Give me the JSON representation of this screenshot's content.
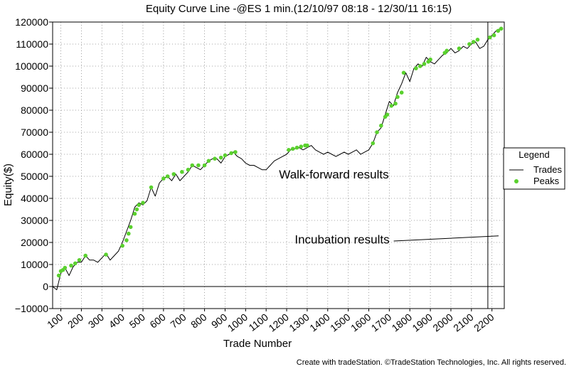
{
  "chart_data": {
    "type": "line",
    "title": "Equity Curve Line -@ES 1 min.(12/10/97 08:18 - 12/30/11 16:15)",
    "xlabel": "Trade Number",
    "ylabel": "Equity($)",
    "xlim": [
      60,
      2260
    ],
    "ylim": [
      -10000,
      120000
    ],
    "x_ticks": [
      100,
      200,
      300,
      400,
      500,
      600,
      700,
      800,
      900,
      1000,
      1100,
      1200,
      1300,
      1400,
      1500,
      1600,
      1700,
      1800,
      1900,
      2000,
      2100,
      2200
    ],
    "y_ticks": [
      -10000,
      0,
      10000,
      20000,
      30000,
      40000,
      50000,
      60000,
      70000,
      80000,
      90000,
      100000,
      110000,
      120000
    ],
    "y_tick_labels": [
      "−10000",
      "0",
      "10000",
      "20000",
      "30000",
      "40000",
      "50000",
      "60000",
      "70000",
      "80000",
      "90000",
      "100000",
      "110000",
      "120000"
    ],
    "grid": true,
    "legend": {
      "title": "Legend",
      "position": "right",
      "entries": [
        {
          "label": "Trades",
          "color": "#000000",
          "marker": "line"
        },
        {
          "label": "Peaks",
          "color": "#5ad12e",
          "marker": "dot"
        }
      ]
    },
    "series": [
      {
        "name": "Trades",
        "color": "#000000",
        "x": [
          60,
          80,
          100,
          120,
          140,
          160,
          180,
          200,
          220,
          240,
          260,
          280,
          300,
          320,
          340,
          360,
          380,
          400,
          420,
          440,
          460,
          480,
          500,
          520,
          540,
          560,
          580,
          600,
          620,
          640,
          660,
          680,
          700,
          720,
          740,
          760,
          780,
          800,
          820,
          840,
          860,
          880,
          900,
          920,
          940,
          960,
          980,
          1000,
          1020,
          1040,
          1060,
          1080,
          1100,
          1120,
          1140,
          1160,
          1180,
          1200,
          1220,
          1240,
          1260,
          1280,
          1300,
          1320,
          1340,
          1360,
          1380,
          1400,
          1420,
          1440,
          1460,
          1480,
          1500,
          1520,
          1540,
          1560,
          1580,
          1600,
          1620,
          1640,
          1660,
          1680,
          1700,
          1720,
          1740,
          1760,
          1780,
          1800,
          1820,
          1840,
          1860,
          1880,
          1900,
          1920,
          1940,
          1960,
          1980,
          2000,
          2020,
          2040,
          2060,
          2080,
          2100,
          2120,
          2140,
          2160,
          2180,
          2200,
          2220,
          2240
        ],
        "y": [
          0,
          -1500,
          6000,
          8500,
          5000,
          9000,
          11000,
          11000,
          14000,
          12000,
          12000,
          11000,
          13000,
          15000,
          12000,
          14000,
          16000,
          20000,
          25000,
          30000,
          36000,
          38000,
          37000,
          39000,
          45000,
          41000,
          47000,
          49000,
          50000,
          48000,
          51000,
          48000,
          50000,
          52000,
          55000,
          54000,
          53000,
          55000,
          57000,
          58000,
          58000,
          56000,
          59000,
          60000,
          61000,
          59000,
          58000,
          56000,
          55000,
          55000,
          54000,
          53000,
          53000,
          55000,
          57000,
          58000,
          59000,
          60000,
          62000,
          62500,
          63000,
          62000,
          63000,
          64000,
          62000,
          61000,
          60000,
          61000,
          60000,
          59000,
          60000,
          61000,
          60000,
          61000,
          62000,
          60000,
          61000,
          62000,
          65000,
          70000,
          72000,
          78000,
          84000,
          82000,
          88000,
          92000,
          97000,
          93000,
          99000,
          101000,
          100000,
          104000,
          102000,
          101000,
          103000,
          105000,
          106000,
          108000,
          106000,
          107000,
          109000,
          108000,
          110000,
          111000,
          108000,
          109000,
          112000,
          114000,
          116000,
          117000
        ]
      },
      {
        "name": "Peaks",
        "color": "#5ad12e",
        "x": [
          90,
          100,
          110,
          120,
          150,
          170,
          190,
          220,
          320,
          400,
          420,
          430,
          440,
          460,
          470,
          480,
          500,
          540,
          600,
          620,
          650,
          690,
          720,
          740,
          770,
          800,
          820,
          850,
          880,
          900,
          930,
          950,
          1210,
          1230,
          1250,
          1270,
          1290,
          1300,
          1620,
          1640,
          1660,
          1680,
          1690,
          1710,
          1730,
          1740,
          1760,
          1770,
          1830,
          1850,
          1870,
          1890,
          1900,
          1970,
          1980,
          2040,
          2090,
          2110,
          2130,
          2190,
          2210,
          2230,
          2245
        ],
        "y": [
          5000,
          7000,
          7500,
          8500,
          9500,
          10500,
          12000,
          14000,
          14500,
          18500,
          21000,
          24000,
          27000,
          33000,
          35000,
          37000,
          38000,
          45000,
          49000,
          50000,
          51000,
          52000,
          53000,
          55000,
          55000,
          55000,
          57000,
          58000,
          58500,
          59500,
          60500,
          61000,
          62000,
          62500,
          63000,
          63500,
          64000,
          64000,
          65000,
          70000,
          73000,
          77000,
          78000,
          82000,
          83000,
          86000,
          88000,
          97000,
          99000,
          100000,
          101000,
          102000,
          103000,
          106000,
          107000,
          108000,
          110000,
          111000,
          112000,
          113000,
          114000,
          116000,
          117000
        ]
      }
    ],
    "annotations": [
      {
        "text": "Walk-forward results",
        "x": 1430,
        "y": 49000
      },
      {
        "text": "Incubation results",
        "x": 1470,
        "y": 19500,
        "arrow_to": [
          2260,
          23000
        ]
      }
    ],
    "vertical_lines": [
      2180
    ]
  },
  "footer": "Create with tradeStation. ©TradeStation Technologies, Inc. All rights reserved."
}
